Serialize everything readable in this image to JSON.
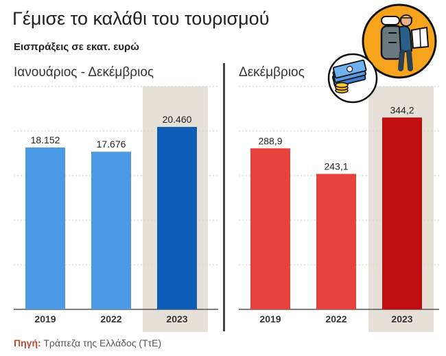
{
  "header": {
    "title": "Γέμισε το καλάθι του τουρισμού",
    "subtitle": "Εισπράξεις σε εκατ. ευρώ"
  },
  "source": {
    "label": "Πηγή:",
    "text": "Τράπεζα της Ελλάδος (ΤτΕ)"
  },
  "icons": [
    "traveler-backpack-icon",
    "money-stack-icon"
  ],
  "colors": {
    "left_bars": "#4a9ae6",
    "left_highlight": "#0d5cb5",
    "right_bars": "#e8423f",
    "right_highlight": "#c00d0d",
    "highlight_band": "#e6e1d8",
    "source_label": "#c0462b"
  },
  "chart_data": [
    {
      "type": "bar",
      "title": "Ιανουάριος - Δεκέμβριος",
      "categories": [
        "2019",
        "2022",
        "2023"
      ],
      "values": [
        18152,
        17676,
        20460
      ],
      "value_labels": [
        "18.152",
        "17.676",
        "20.460"
      ],
      "ylim": [
        0,
        25000
      ],
      "highlight": "2023",
      "grid": true
    },
    {
      "type": "bar",
      "title": "Δεκέμβριος",
      "categories": [
        "2019",
        "2022",
        "2023"
      ],
      "values": [
        288.9,
        243.1,
        344.2
      ],
      "value_labels": [
        "288,9",
        "243,1",
        "344,2"
      ],
      "ylim": [
        0,
        400
      ],
      "highlight": "2023",
      "grid": true
    }
  ]
}
